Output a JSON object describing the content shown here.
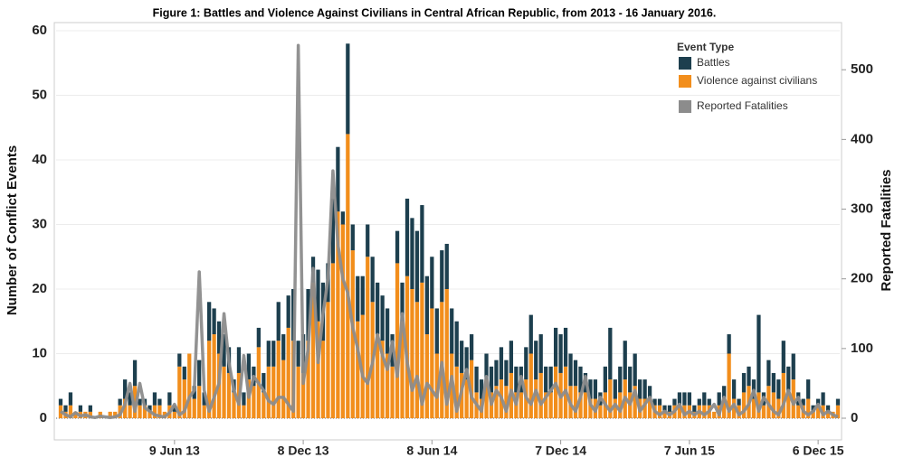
{
  "chart_data": {
    "type": "bar",
    "title": "Figure 1: Battles and Violence Against Civilians in Central African Republic, from 2013 - 16 January 2016.",
    "y_label": "Number of Conflict Events",
    "y2_label": "Reported Fatalities",
    "legend_title": "Event Type",
    "stacked": true,
    "grid": true,
    "categories": [
      null,
      null,
      null,
      null,
      null,
      null,
      null,
      null,
      null,
      null,
      null,
      null,
      null,
      null,
      null,
      null,
      null,
      null,
      null,
      null,
      null,
      null,
      null,
      "9 Jun 13",
      null,
      null,
      null,
      null,
      null,
      null,
      null,
      null,
      null,
      null,
      null,
      null,
      null,
      null,
      null,
      null,
      null,
      null,
      null,
      null,
      null,
      null,
      null,
      null,
      null,
      "8 Dec 13",
      null,
      null,
      null,
      null,
      null,
      null,
      null,
      null,
      null,
      null,
      null,
      null,
      null,
      null,
      null,
      null,
      null,
      null,
      null,
      null,
      null,
      null,
      null,
      null,
      null,
      "8 Jun 14",
      null,
      null,
      null,
      null,
      null,
      null,
      null,
      null,
      null,
      null,
      null,
      null,
      null,
      null,
      null,
      null,
      null,
      null,
      null,
      null,
      null,
      null,
      null,
      null,
      null,
      "7 Dec 14",
      null,
      null,
      null,
      null,
      null,
      null,
      null,
      null,
      null,
      null,
      null,
      null,
      null,
      null,
      null,
      null,
      null,
      null,
      null,
      null,
      null,
      null,
      null,
      null,
      null,
      "7 Jun 15",
      null,
      null,
      null,
      null,
      null,
      null,
      null,
      null,
      null,
      null,
      null,
      null,
      null,
      null,
      null,
      null,
      null,
      null,
      null,
      null,
      null,
      null,
      null,
      null,
      null,
      "6 Dec 15",
      null,
      null,
      null,
      null
    ],
    "series": [
      {
        "name": "Battles",
        "color": "#1d3f4e",
        "type": "bar",
        "values": [
          1,
          1,
          2,
          0,
          1,
          0,
          1,
          0,
          0,
          0,
          0,
          0,
          1,
          3,
          2,
          4,
          1,
          1,
          1,
          2,
          1,
          0,
          2,
          1,
          2,
          2,
          0,
          2,
          4,
          2,
          6,
          4,
          5,
          5,
          4,
          2,
          4,
          2,
          4,
          3,
          3,
          3,
          4,
          4,
          6,
          4,
          5,
          8,
          4,
          6,
          8,
          4,
          8,
          9,
          6,
          10,
          10,
          2,
          14,
          4,
          7,
          6,
          5,
          7,
          8,
          7,
          7,
          5,
          5,
          6,
          12,
          11,
          11,
          12,
          9,
          8,
          7,
          8,
          7,
          7,
          7,
          5,
          5,
          4,
          4,
          3,
          4,
          4,
          4,
          5,
          4,
          5,
          4,
          4,
          5,
          6,
          6,
          6,
          4,
          4,
          6,
          6,
          6,
          5,
          4,
          4,
          3,
          3,
          3,
          2,
          4,
          8,
          3,
          4,
          6,
          4,
          5,
          3,
          3,
          2,
          1,
          1,
          1,
          1,
          1,
          2,
          2,
          2,
          1,
          1,
          2,
          1,
          0,
          2,
          2,
          3,
          3,
          1,
          3,
          3,
          3,
          12,
          2,
          4,
          3,
          3,
          5,
          4,
          4,
          2,
          1,
          3,
          1,
          1,
          2,
          1,
          0,
          1
        ]
      },
      {
        "name": "Violence against civilians",
        "color": "#f28e1c",
        "type": "bar",
        "values": [
          2,
          1,
          2,
          1,
          1,
          1,
          1,
          0,
          1,
          0,
          1,
          1,
          2,
          3,
          2,
          5,
          2,
          2,
          1,
          2,
          2,
          1,
          2,
          1,
          8,
          6,
          10,
          3,
          5,
          2,
          12,
          13,
          10,
          8,
          7,
          4,
          7,
          2,
          6,
          5,
          11,
          4,
          8,
          8,
          12,
          9,
          14,
          12,
          8,
          7,
          12,
          21,
          15,
          12,
          18,
          24,
          32,
          30,
          44,
          26,
          15,
          16,
          25,
          18,
          13,
          12,
          10,
          8,
          24,
          15,
          22,
          20,
          18,
          21,
          13,
          17,
          10,
          18,
          20,
          10,
          8,
          7,
          6,
          9,
          4,
          3,
          6,
          4,
          5,
          6,
          5,
          7,
          4,
          4,
          6,
          10,
          6,
          7,
          4,
          4,
          8,
          7,
          8,
          5,
          5,
          4,
          4,
          3,
          3,
          2,
          4,
          6,
          3,
          4,
          6,
          4,
          5,
          3,
          3,
          3,
          2,
          2,
          1,
          1,
          2,
          2,
          2,
          2,
          1,
          2,
          2,
          2,
          1,
          2,
          3,
          10,
          3,
          2,
          4,
          5,
          3,
          4,
          2,
          5,
          4,
          3,
          7,
          4,
          6,
          2,
          2,
          3,
          1,
          2,
          2,
          1,
          1,
          2
        ]
      },
      {
        "name": "Reported Fatalities",
        "color": "#8c8c8c",
        "type": "line",
        "axis": "y2",
        "values": [
          10,
          5,
          2,
          8,
          3,
          5,
          2,
          1,
          3,
          2,
          1,
          2,
          5,
          20,
          50,
          10,
          50,
          15,
          10,
          5,
          3,
          2,
          8,
          20,
          5,
          10,
          30,
          40,
          210,
          40,
          10,
          30,
          50,
          150,
          80,
          40,
          20,
          90,
          30,
          60,
          50,
          40,
          25,
          20,
          30,
          30,
          20,
          10,
          535,
          50,
          100,
          215,
          80,
          150,
          200,
          355,
          250,
          200,
          180,
          130,
          100,
          60,
          50,
          80,
          120,
          90,
          70,
          110,
          60,
          150,
          80,
          40,
          60,
          20,
          50,
          40,
          30,
          80,
          20,
          60,
          10,
          40,
          70,
          30,
          20,
          10,
          60,
          20,
          40,
          30,
          10,
          40,
          20,
          60,
          30,
          20,
          40,
          20,
          30,
          40,
          50,
          30,
          40,
          20,
          10,
          30,
          60,
          20,
          10,
          30,
          20,
          10,
          20,
          10,
          30,
          20,
          40,
          10,
          20,
          30,
          10,
          5,
          10,
          5,
          10,
          20,
          5,
          10,
          5,
          10,
          5,
          10,
          20,
          5,
          30,
          10,
          20,
          5,
          10,
          20,
          40,
          10,
          30,
          20,
          10,
          5,
          20,
          40,
          20,
          30,
          10,
          5,
          10,
          20,
          5,
          10,
          5,
          2
        ]
      }
    ],
    "ylim": [
      0,
      60
    ],
    "yticks": [
      0,
      10,
      20,
      30,
      40,
      50,
      60
    ],
    "y2lim": [
      0,
      556
    ],
    "y2ticks": [
      0,
      100,
      200,
      300,
      400,
      500
    ]
  }
}
